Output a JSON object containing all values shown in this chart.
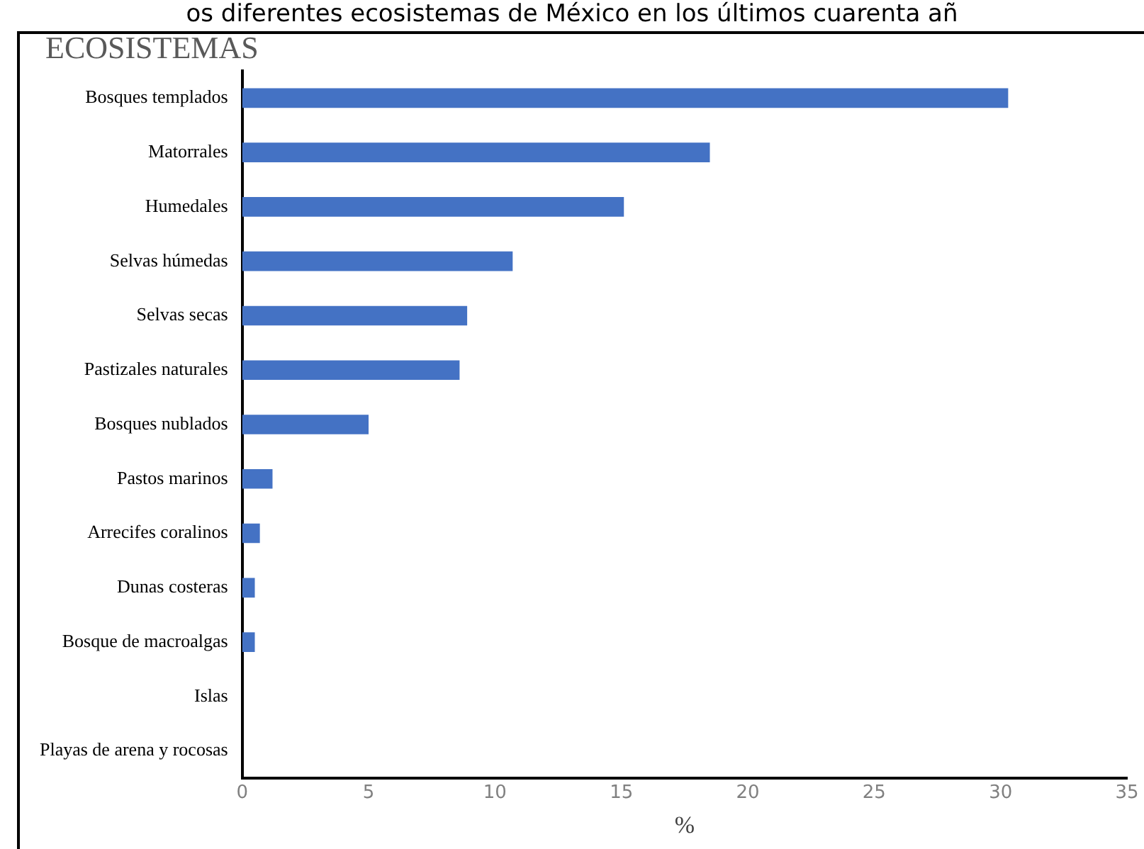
{
  "chart_data": {
    "type": "bar",
    "orientation": "horizontal",
    "title": "os diferentes ecosistemas de México en los últimos cuarenta añ",
    "ylabel": "ECOSISTEMAS",
    "xlabel": "%",
    "categories": [
      "Bosques templados",
      "Matorrales",
      "Humedales",
      "Selvas húmedas",
      "Selvas secas",
      "Pastizales naturales",
      "Bosques nublados",
      "Pastos marinos",
      "Arrecifes coralinos",
      "Dunas costeras",
      "Bosque de macroalgas",
      "Islas",
      "Playas de arena y rocosas"
    ],
    "values": [
      30.3,
      18.5,
      15.1,
      10.7,
      8.9,
      8.6,
      5.0,
      1.2,
      0.7,
      0.5,
      0.5,
      0,
      0
    ],
    "color": "#4472c4",
    "xlim": [
      0,
      35
    ],
    "xticks": [
      0,
      5,
      10,
      15,
      20,
      25,
      30,
      35
    ],
    "grid": false,
    "legend": false
  }
}
